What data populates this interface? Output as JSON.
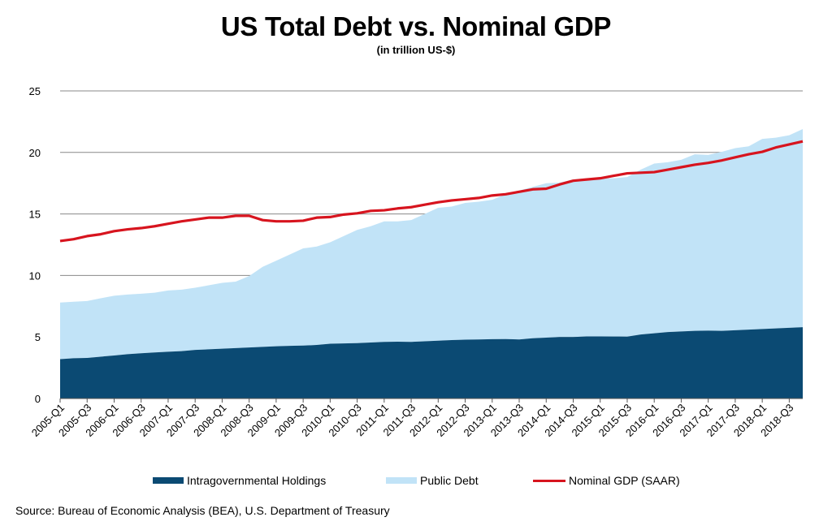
{
  "chart_data": {
    "type": "area",
    "title": "US Total Debt vs. Nominal GDP",
    "subtitle": "(in trillion US-$)",
    "ylim": [
      0,
      25
    ],
    "yticks": [
      0,
      5,
      10,
      15,
      20,
      25
    ],
    "grid": true,
    "legend_position": "bottom",
    "x": [
      "2005-Q1",
      "2005-Q2",
      "2005-Q3",
      "2005-Q4",
      "2006-Q1",
      "2006-Q2",
      "2006-Q3",
      "2006-Q4",
      "2007-Q1",
      "2007-Q2",
      "2007-Q3",
      "2007-Q4",
      "2008-Q1",
      "2008-Q2",
      "2008-Q3",
      "2008-Q4",
      "2009-Q1",
      "2009-Q2",
      "2009-Q3",
      "2009-Q4",
      "2010-Q1",
      "2010-Q2",
      "2010-Q3",
      "2010-Q4",
      "2011-Q1",
      "2011-Q2",
      "2011-Q3",
      "2011-Q4",
      "2012-Q1",
      "2012-Q2",
      "2012-Q3",
      "2012-Q4",
      "2013-Q1",
      "2013-Q2",
      "2013-Q3",
      "2013-Q4",
      "2014-Q1",
      "2014-Q2",
      "2014-Q3",
      "2014-Q4",
      "2015-Q1",
      "2015-Q2",
      "2015-Q3",
      "2015-Q4",
      "2016-Q1",
      "2016-Q2",
      "2016-Q3",
      "2016-Q4",
      "2017-Q1",
      "2017-Q2",
      "2017-Q3",
      "2017-Q4",
      "2018-Q1",
      "2018-Q2",
      "2018-Q3",
      "2018-Q4"
    ],
    "xtick_labels": [
      "2005-Q1",
      "2005-Q3",
      "2006-Q1",
      "2006-Q3",
      "2007-Q1",
      "2007-Q3",
      "2008-Q1",
      "2008-Q3",
      "2009-Q1",
      "2009-Q3",
      "2010-Q1",
      "2010-Q3",
      "2011-Q1",
      "2011-Q3",
      "2012-Q1",
      "2012-Q3",
      "2013-Q1",
      "2013-Q3",
      "2014-Q1",
      "2014-Q3",
      "2015-Q1",
      "2015-Q3",
      "2016-Q1",
      "2016-Q3",
      "2017-Q1",
      "2017-Q3",
      "2018-Q1",
      "2018-Q3"
    ],
    "series": [
      {
        "name": "Intragovernmental Holdings",
        "type": "stacked-area",
        "color": "#0b4a73",
        "values": [
          3.2,
          3.27,
          3.3,
          3.4,
          3.5,
          3.6,
          3.68,
          3.74,
          3.8,
          3.85,
          3.95,
          4.0,
          4.05,
          4.1,
          4.15,
          4.2,
          4.25,
          4.28,
          4.3,
          4.35,
          4.45,
          4.48,
          4.5,
          4.55,
          4.6,
          4.62,
          4.6,
          4.65,
          4.7,
          4.75,
          4.78,
          4.8,
          4.82,
          4.83,
          4.8,
          4.9,
          4.95,
          5.0,
          5.0,
          5.05,
          5.05,
          5.04,
          5.03,
          5.2,
          5.3,
          5.4,
          5.45,
          5.5,
          5.52,
          5.5,
          5.55,
          5.6,
          5.65,
          5.7,
          5.75,
          5.8
        ]
      },
      {
        "name": "Public Debt",
        "type": "stacked-area",
        "color": "#c1e3f7",
        "values": [
          4.6,
          4.6,
          4.62,
          4.75,
          4.85,
          4.85,
          4.84,
          4.86,
          4.98,
          5.0,
          5.05,
          5.2,
          5.35,
          5.4,
          5.8,
          6.5,
          6.95,
          7.42,
          7.9,
          8.0,
          8.25,
          8.72,
          9.2,
          9.45,
          9.8,
          9.78,
          9.9,
          10.35,
          10.8,
          10.85,
          11.12,
          11.2,
          11.33,
          11.77,
          12.1,
          12.3,
          12.55,
          12.55,
          12.8,
          12.85,
          12.85,
          12.86,
          12.97,
          13.4,
          13.8,
          13.8,
          13.95,
          14.35,
          14.28,
          14.55,
          14.8,
          14.9,
          15.45,
          15.5,
          15.65,
          16.1
        ]
      },
      {
        "name": "Nominal GDP (SAAR)",
        "type": "line",
        "color": "#d7141e",
        "values": [
          12.8,
          12.95,
          13.2,
          13.35,
          13.6,
          13.75,
          13.85,
          14.0,
          14.2,
          14.4,
          14.55,
          14.7,
          14.7,
          14.85,
          14.85,
          14.5,
          14.4,
          14.4,
          14.45,
          14.7,
          14.75,
          14.95,
          15.05,
          15.25,
          15.3,
          15.45,
          15.55,
          15.75,
          15.95,
          16.1,
          16.2,
          16.3,
          16.5,
          16.6,
          16.8,
          17.0,
          17.05,
          17.4,
          17.7,
          17.8,
          17.9,
          18.1,
          18.3,
          18.35,
          18.4,
          18.6,
          18.8,
          19.0,
          19.15,
          19.35,
          19.6,
          19.85,
          20.05,
          20.4,
          20.65,
          20.9
        ]
      }
    ],
    "source": "Source: Bureau of Economic Analysis (BEA), U.S. Department of Treasury"
  }
}
